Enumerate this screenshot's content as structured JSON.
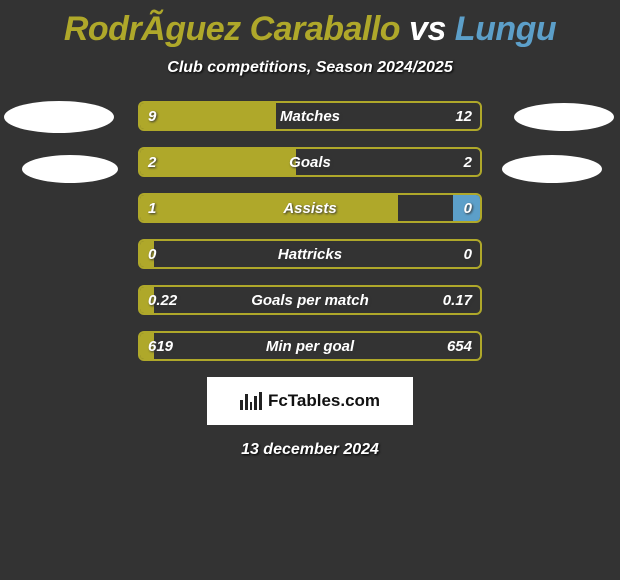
{
  "title": "RodrÃ­guez Caraballo vs Lungu",
  "subtitle": "Club competitions, Season 2024/2025",
  "date": "13 december 2024",
  "source": "FcTables.com",
  "colors": {
    "left": "#afa82a",
    "right": "#5c9fc9",
    "title_left": "#afa82a",
    "title_right": "#5c9fc9",
    "background": "#333333"
  },
  "stats": [
    {
      "label": "Matches",
      "left_val": "9",
      "right_val": "12",
      "left_pct": 40,
      "right_pct": 0
    },
    {
      "label": "Goals",
      "left_val": "2",
      "right_val": "2",
      "left_pct": 46,
      "right_pct": 0
    },
    {
      "label": "Assists",
      "left_val": "1",
      "right_val": "0",
      "left_pct": 76,
      "right_pct": 8
    },
    {
      "label": "Hattricks",
      "left_val": "0",
      "right_val": "0",
      "left_pct": 4,
      "right_pct": 0
    },
    {
      "label": "Goals per match",
      "left_val": "0.22",
      "right_val": "0.17",
      "left_pct": 4,
      "right_pct": 0
    },
    {
      "label": "Min per goal",
      "left_val": "619",
      "right_val": "654",
      "left_pct": 4,
      "right_pct": 0
    }
  ],
  "bar_style": {
    "height": 30,
    "gap": 16,
    "border_radius": 6,
    "border_width": 2
  }
}
